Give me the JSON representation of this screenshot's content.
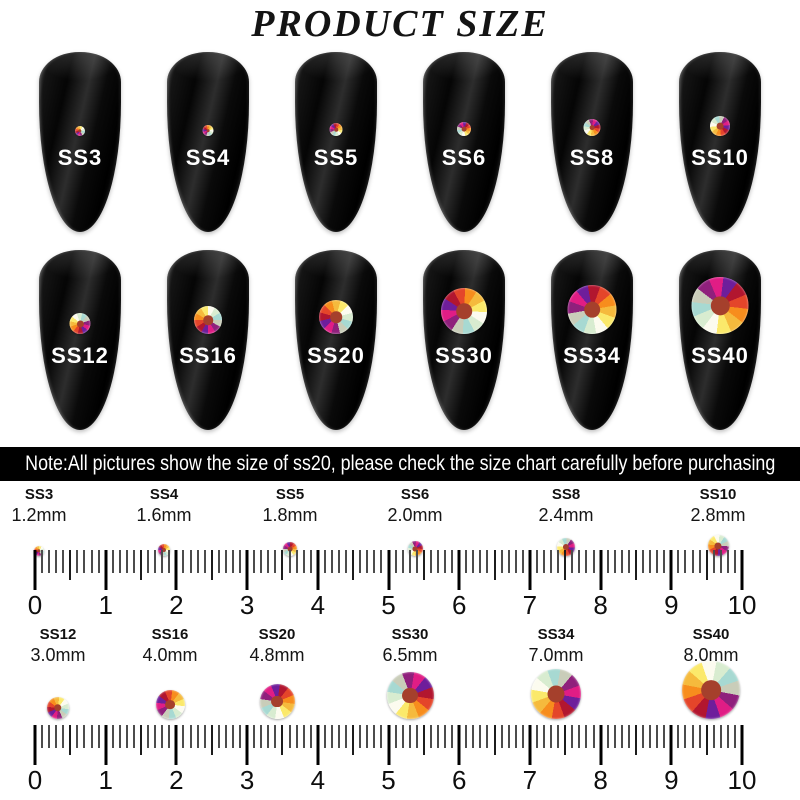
{
  "title": "PRODUCT SIZE",
  "note": "Note:All pictures show the size of ss20, please check the size chart carefully before purchasing",
  "sizes": [
    {
      "ss": "SS3",
      "mm": "1.2mm",
      "mm_value": 1.2
    },
    {
      "ss": "SS4",
      "mm": "1.6mm",
      "mm_value": 1.6
    },
    {
      "ss": "SS5",
      "mm": "1.8mm",
      "mm_value": 1.8
    },
    {
      "ss": "SS6",
      "mm": "2.0mm",
      "mm_value": 2.0
    },
    {
      "ss": "SS8",
      "mm": "2.4mm",
      "mm_value": 2.4
    },
    {
      "ss": "SS10",
      "mm": "2.8mm",
      "mm_value": 2.8
    },
    {
      "ss": "SS12",
      "mm": "3.0mm",
      "mm_value": 3.0
    },
    {
      "ss": "SS16",
      "mm": "4.0mm",
      "mm_value": 4.0
    },
    {
      "ss": "SS20",
      "mm": "4.8mm",
      "mm_value": 4.8
    },
    {
      "ss": "SS30",
      "mm": "6.5mm",
      "mm_value": 6.5
    },
    {
      "ss": "SS34",
      "mm": "7.0mm",
      "mm_value": 7.0
    },
    {
      "ss": "SS40",
      "mm": "8.0mm",
      "mm_value": 8.0
    }
  ],
  "ruler": {
    "numbers": [
      "0",
      "1",
      "2",
      "3",
      "4",
      "5",
      "6",
      "7",
      "8",
      "9",
      "10"
    ]
  },
  "stone": {
    "palette": [
      "#fbe96b",
      "#fcfbef",
      "#d8ecd0",
      "#a7d9d2",
      "#c9cdb9",
      "#8f207c",
      "#e01d85",
      "#6e1e9b",
      "#b2162f",
      "#e4452a",
      "#f78d1d",
      "#f5ba3d"
    ],
    "core_color": "#a5402c"
  },
  "colors": {
    "banner_bg": "#000000",
    "banner_text": "#ffffff",
    "nail_black": "#070707",
    "label_text": "#111111"
  },
  "chart_data": {
    "type": "table",
    "title": "PRODUCT SIZE",
    "columns": [
      "size",
      "diameter_mm"
    ],
    "rows": [
      [
        "SS3",
        1.2
      ],
      [
        "SS4",
        1.6
      ],
      [
        "SS5",
        1.8
      ],
      [
        "SS6",
        2.0
      ],
      [
        "SS8",
        2.4
      ],
      [
        "SS10",
        2.8
      ],
      [
        "SS12",
        3.0
      ],
      [
        "SS16",
        4.0
      ],
      [
        "SS20",
        4.8
      ],
      [
        "SS30",
        6.5
      ],
      [
        "SS34",
        7.0
      ],
      [
        "SS40",
        8.0
      ]
    ],
    "ruler_range_cm": [
      0,
      10
    ],
    "ruler_tick_step_mm": 1
  }
}
